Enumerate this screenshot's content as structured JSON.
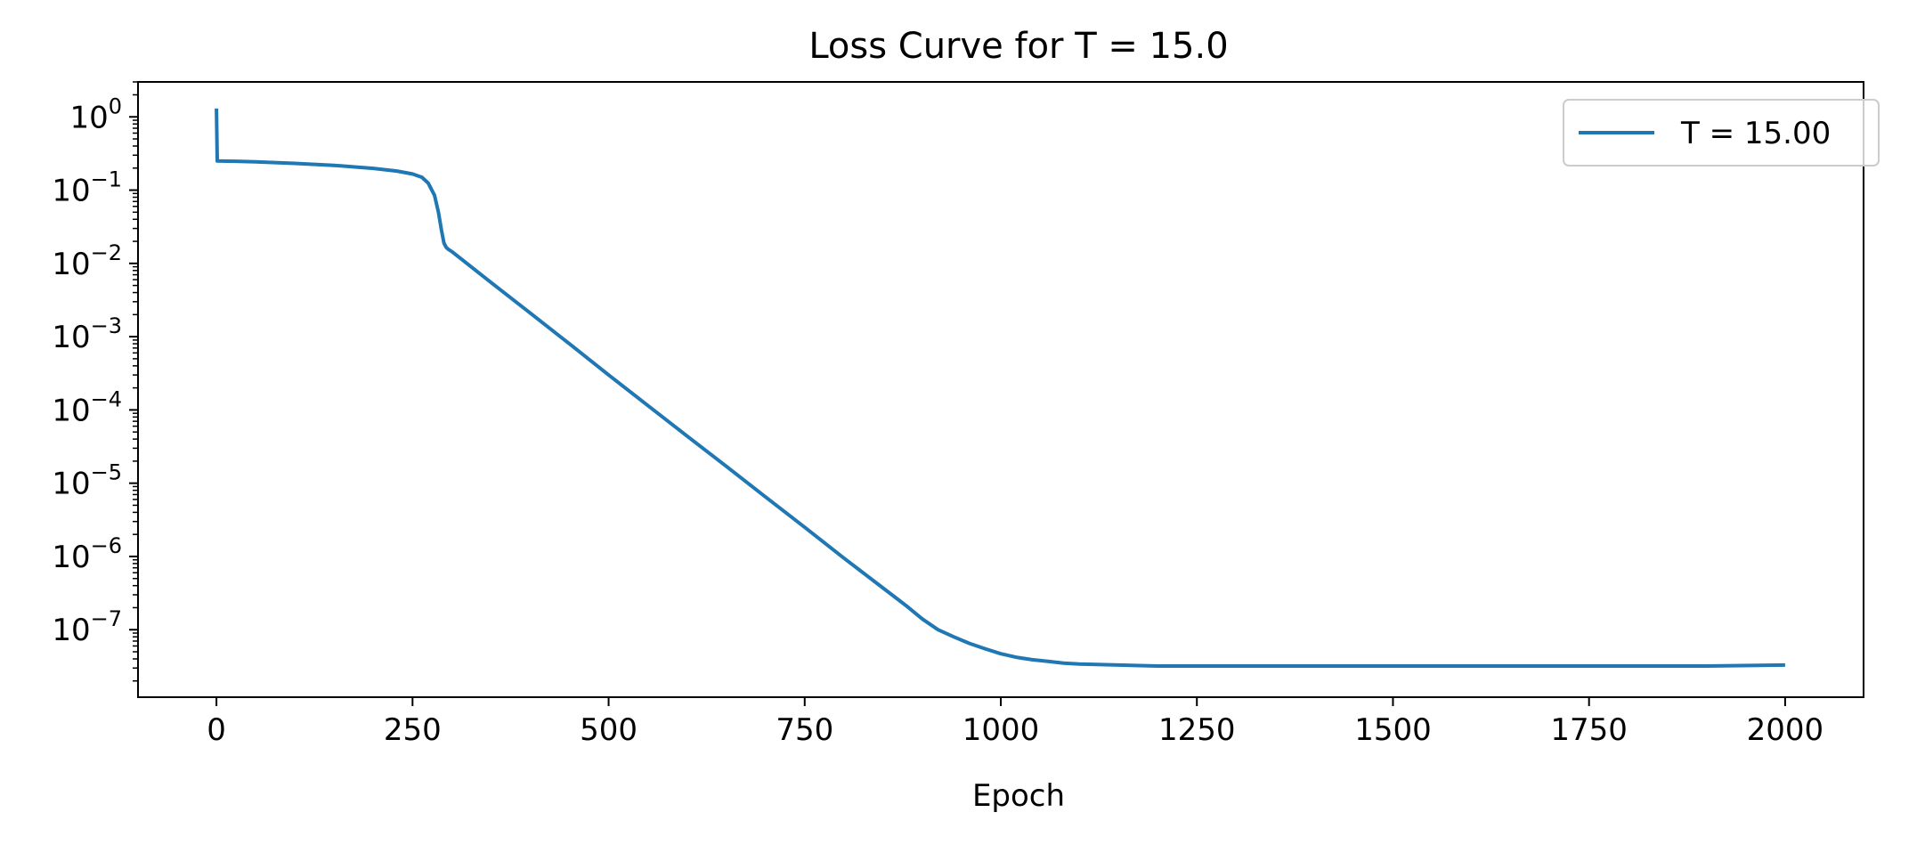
{
  "chart_data": {
    "type": "line",
    "title": "Loss Curve for T = 15.0",
    "xlabel": "Epoch",
    "ylabel": "",
    "xlim": [
      -100,
      2100
    ],
    "ylim": [
      1.2e-08,
      3.0
    ],
    "yscale": "log",
    "grid": false,
    "legend_position": "top-right",
    "x_ticks": [
      0,
      250,
      500,
      750,
      1000,
      1250,
      1500,
      1750,
      2000
    ],
    "y_tick_base": "10",
    "y_tick_exponents": [
      "0",
      "−1",
      "−2",
      "−3",
      "−4",
      "−5",
      "−6",
      "−7"
    ],
    "series": [
      {
        "name": "T = 15.00",
        "color": "#1f77b4",
        "x": [
          0,
          1,
          25,
          50,
          100,
          150,
          200,
          230,
          250,
          262,
          270,
          278,
          283,
          287,
          290,
          293,
          296,
          300,
          350,
          400,
          450,
          500,
          550,
          600,
          650,
          700,
          750,
          800,
          850,
          880,
          900,
          920,
          940,
          960,
          980,
          1000,
          1020,
          1040,
          1060,
          1080,
          1100,
          1150,
          1200,
          1300,
          1400,
          1500,
          1600,
          1700,
          1800,
          1900,
          2000
        ],
        "y": [
          1.3,
          0.25,
          0.248,
          0.243,
          0.232,
          0.218,
          0.198,
          0.182,
          0.166,
          0.15,
          0.125,
          0.085,
          0.05,
          0.028,
          0.019,
          0.0165,
          0.0155,
          0.0145,
          0.0055,
          0.0021,
          0.0008,
          0.0003,
          0.000115,
          4.4e-05,
          1.7e-05,
          6.5e-06,
          2.5e-06,
          9.5e-07,
          3.7e-07,
          2.1e-07,
          1.4e-07,
          1e-07,
          8e-08,
          6.5e-08,
          5.5e-08,
          4.7e-08,
          4.2e-08,
          3.9e-08,
          3.7e-08,
          3.5e-08,
          3.4e-08,
          3.3e-08,
          3.2e-08,
          3.2e-08,
          3.2e-08,
          3.2e-08,
          3.2e-08,
          3.2e-08,
          3.2e-08,
          3.2e-08,
          3.3e-08
        ]
      }
    ]
  }
}
